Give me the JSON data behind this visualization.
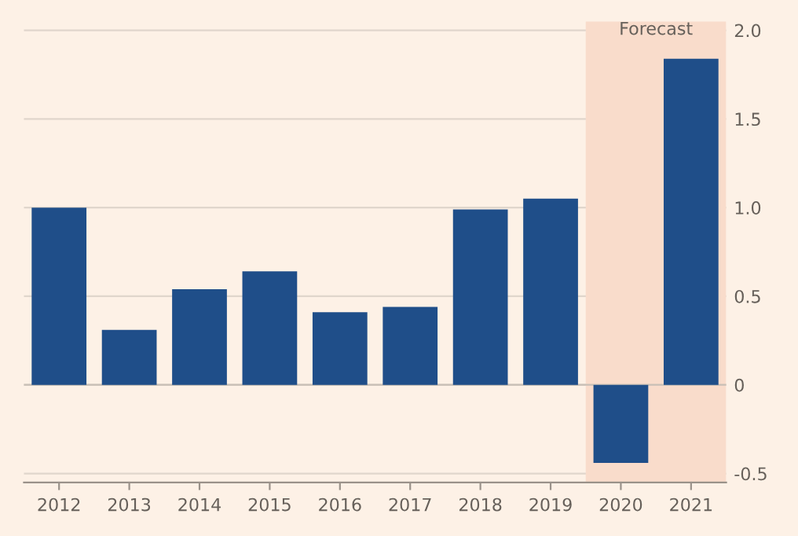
{
  "chart_data": {
    "type": "bar",
    "categories": [
      "2012",
      "2013",
      "2014",
      "2015",
      "2016",
      "2017",
      "2018",
      "2019",
      "2020",
      "2021"
    ],
    "values": [
      1.0,
      0.31,
      0.54,
      0.64,
      0.41,
      0.44,
      0.99,
      1.05,
      -0.44,
      1.84
    ],
    "color": "#1f4e89",
    "ylim": [
      -0.55,
      2.05
    ],
    "yticks": [
      -0.5,
      0,
      0.5,
      {
        "value": 1,
        "label": "1.0"
      },
      1.5,
      {
        "value": 2,
        "label": "2.0"
      }
    ],
    "grid": "y",
    "bands": [
      {
        "axis": "x",
        "from": "2020",
        "to": "2021",
        "label": "Forecast",
        "color": "#f9dccb"
      }
    ]
  }
}
